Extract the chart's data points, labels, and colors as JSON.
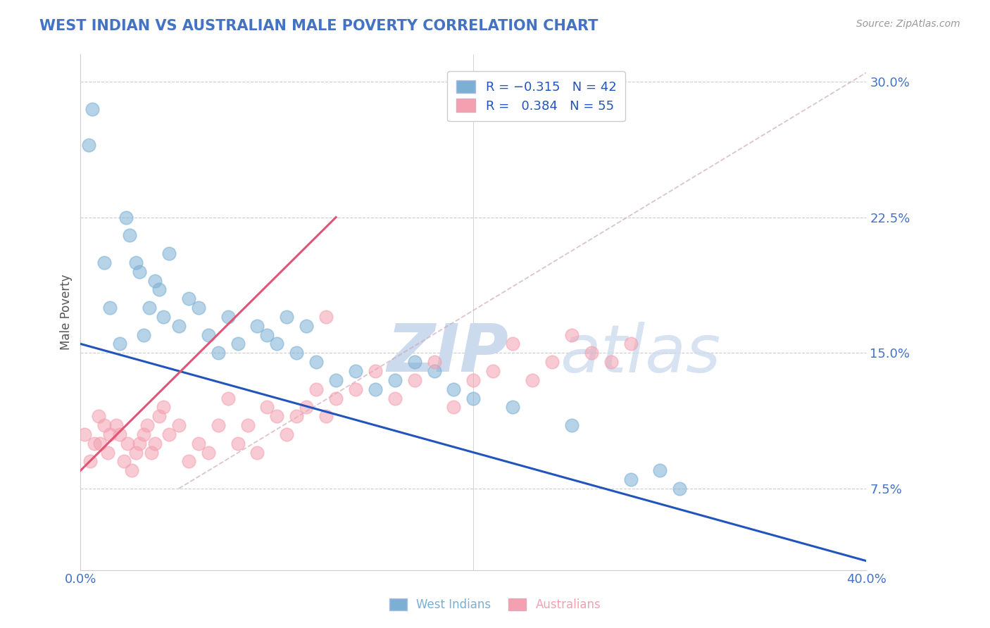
{
  "title": "WEST INDIAN VS AUSTRALIAN MALE POVERTY CORRELATION CHART",
  "source": "Source: ZipAtlas.com",
  "ylabel": "Male Poverty",
  "y_ticks": [
    7.5,
    15.0,
    22.5,
    30.0
  ],
  "xmin": 0.0,
  "xmax": 40.0,
  "ymin": 3.0,
  "ymax": 31.5,
  "title_color": "#4472c4",
  "axis_tick_color": "#4472c4",
  "blue_color": "#7bafd4",
  "pink_color": "#f4a0b0",
  "blue_line_color": "#2255bb",
  "pink_line_color": "#e05575",
  "ref_line_color": "#bbbbcc",
  "watermark_color": "#ccdaee",
  "wi_x": [
    0.4,
    0.6,
    1.2,
    1.5,
    2.0,
    2.3,
    2.5,
    2.8,
    3.0,
    3.2,
    3.5,
    3.8,
    4.0,
    4.2,
    4.5,
    5.0,
    5.5,
    6.0,
    6.5,
    7.0,
    7.5,
    8.0,
    9.0,
    9.5,
    10.0,
    10.5,
    11.0,
    11.5,
    12.0,
    13.0,
    14.0,
    15.0,
    16.0,
    17.0,
    18.0,
    19.0,
    20.0,
    22.0,
    25.0,
    28.0,
    29.5,
    30.5
  ],
  "wi_y": [
    26.5,
    28.5,
    20.0,
    17.5,
    15.5,
    22.5,
    21.5,
    20.0,
    19.5,
    16.0,
    17.5,
    19.0,
    18.5,
    17.0,
    20.5,
    16.5,
    18.0,
    17.5,
    16.0,
    15.0,
    17.0,
    15.5,
    16.5,
    16.0,
    15.5,
    17.0,
    15.0,
    16.5,
    14.5,
    13.5,
    14.0,
    13.0,
    13.5,
    14.5,
    14.0,
    13.0,
    12.5,
    12.0,
    11.0,
    8.0,
    8.5,
    7.5
  ],
  "au_x": [
    0.2,
    0.5,
    0.7,
    0.9,
    1.0,
    1.2,
    1.4,
    1.5,
    1.8,
    2.0,
    2.2,
    2.4,
    2.6,
    2.8,
    3.0,
    3.2,
    3.4,
    3.6,
    3.8,
    4.0,
    4.2,
    4.5,
    5.0,
    5.5,
    6.0,
    6.5,
    7.0,
    7.5,
    8.0,
    8.5,
    9.0,
    9.5,
    10.0,
    10.5,
    11.0,
    11.5,
    12.0,
    12.5,
    13.0,
    14.0,
    15.0,
    16.0,
    17.0,
    18.0,
    19.0,
    20.0,
    21.0,
    22.0,
    23.0,
    24.0,
    25.0,
    26.0,
    27.0,
    28.0,
    12.5
  ],
  "au_y": [
    10.5,
    9.0,
    10.0,
    11.5,
    10.0,
    11.0,
    9.5,
    10.5,
    11.0,
    10.5,
    9.0,
    10.0,
    8.5,
    9.5,
    10.0,
    10.5,
    11.0,
    9.5,
    10.0,
    11.5,
    12.0,
    10.5,
    11.0,
    9.0,
    10.0,
    9.5,
    11.0,
    12.5,
    10.0,
    11.0,
    9.5,
    12.0,
    11.5,
    10.5,
    11.5,
    12.0,
    13.0,
    11.5,
    12.5,
    13.0,
    14.0,
    12.5,
    13.5,
    14.5,
    12.0,
    13.5,
    14.0,
    15.5,
    13.5,
    14.5,
    16.0,
    15.0,
    14.5,
    15.5,
    17.0
  ],
  "blue_line_x0": 0.0,
  "blue_line_y0": 15.5,
  "blue_line_x1": 40.0,
  "blue_line_y1": 3.5,
  "pink_line_x0": 0.0,
  "pink_line_y0": 8.5,
  "pink_line_x1": 13.0,
  "pink_line_y1": 22.5,
  "ref_line_x0": 5.0,
  "ref_line_y0": 7.5,
  "ref_line_x1": 40.0,
  "ref_line_y1": 30.5
}
